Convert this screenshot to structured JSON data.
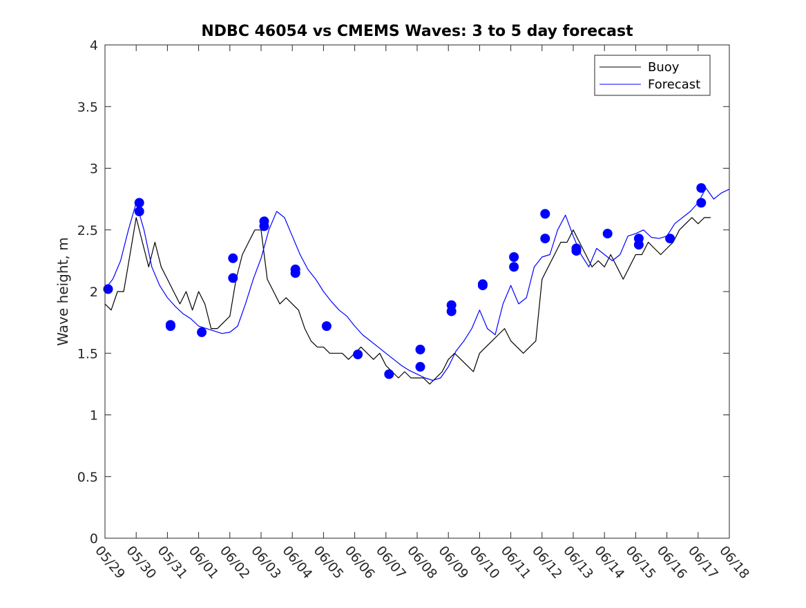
{
  "chart_data": {
    "type": "line",
    "title": "NDBC 46054 vs CMEMS Waves: 3 to 5 day forecast",
    "xlabel": "",
    "ylabel": "Wave height, m",
    "xlim": [
      0,
      20
    ],
    "ylim": [
      0,
      4
    ],
    "grid": false,
    "legend_position": "top-right",
    "x_tick_labels": [
      "05/29",
      "05/30",
      "05/31",
      "06/01",
      "06/02",
      "06/03",
      "06/04",
      "06/05",
      "06/06",
      "06/07",
      "06/08",
      "06/09",
      "06/10",
      "06/11",
      "06/12",
      "06/13",
      "06/14",
      "06/15",
      "06/16",
      "06/17",
      "06/18"
    ],
    "y_tick_labels": [
      "0",
      "0.5",
      "1",
      "1.5",
      "2",
      "2.5",
      "3",
      "3.5",
      "4"
    ],
    "legend": [
      {
        "label": "Buoy",
        "color": "#000000"
      },
      {
        "label": "Forecast",
        "color": "#0000ff"
      }
    ],
    "colors": {
      "buoy": "#000000",
      "forecast": "#0000ff",
      "markers": "#0000ff"
    },
    "series": [
      {
        "name": "Buoy",
        "x": [
          0,
          0.2,
          0.4,
          0.6,
          0.8,
          1.0,
          1.2,
          1.4,
          1.6,
          1.8,
          2.0,
          2.2,
          2.4,
          2.6,
          2.8,
          3.0,
          3.2,
          3.4,
          3.6,
          3.8,
          4.0,
          4.2,
          4.4,
          4.6,
          4.8,
          5.0,
          5.2,
          5.4,
          5.6,
          5.8,
          6.0,
          6.2,
          6.4,
          6.6,
          6.8,
          7.0,
          7.2,
          7.4,
          7.6,
          7.8,
          8.0,
          8.2,
          8.4,
          8.6,
          8.8,
          9.0,
          9.2,
          9.4,
          9.6,
          9.8,
          10.0,
          10.2,
          10.4,
          10.6,
          10.8,
          11.0,
          11.2,
          11.4,
          11.6,
          11.8,
          12.0,
          12.2,
          12.4,
          12.6,
          12.8,
          13.0,
          13.2,
          13.4,
          13.6,
          13.8,
          14.0,
          14.2,
          14.4,
          14.6,
          14.8,
          15.0,
          15.2,
          15.4,
          15.6,
          15.8,
          16.0,
          16.2,
          16.4,
          16.6,
          16.8,
          17.0,
          17.2,
          17.4,
          17.6,
          17.8,
          18.0,
          18.2,
          18.4,
          18.6,
          18.8,
          19.0,
          19.2,
          19.4
        ],
        "y": [
          1.9,
          1.85,
          2.0,
          2.0,
          2.3,
          2.6,
          2.4,
          2.2,
          2.4,
          2.2,
          2.1,
          2.0,
          1.9,
          2.0,
          1.85,
          2.0,
          1.9,
          1.7,
          1.7,
          1.75,
          1.8,
          2.1,
          2.3,
          2.4,
          2.5,
          2.5,
          2.1,
          2.0,
          1.9,
          1.95,
          1.9,
          1.85,
          1.7,
          1.6,
          1.55,
          1.55,
          1.5,
          1.5,
          1.5,
          1.45,
          1.5,
          1.55,
          1.5,
          1.45,
          1.5,
          1.4,
          1.35,
          1.3,
          1.35,
          1.3,
          1.3,
          1.3,
          1.25,
          1.3,
          1.35,
          1.45,
          1.5,
          1.45,
          1.4,
          1.35,
          1.5,
          1.55,
          1.6,
          1.65,
          1.7,
          1.6,
          1.55,
          1.5,
          1.55,
          1.6,
          2.1,
          2.2,
          2.3,
          2.4,
          2.4,
          2.5,
          2.4,
          2.3,
          2.2,
          2.25,
          2.2,
          2.3,
          2.2,
          2.1,
          2.2,
          2.3,
          2.3,
          2.4,
          2.35,
          2.3,
          2.35,
          2.4,
          2.5,
          2.55,
          2.6,
          2.55,
          2.6,
          2.6
        ]
      },
      {
        "name": "Forecast",
        "x": [
          0,
          0.25,
          0.5,
          0.75,
          1.0,
          1.25,
          1.5,
          1.75,
          2.0,
          2.25,
          2.5,
          2.75,
          3.0,
          3.25,
          3.5,
          3.75,
          4.0,
          4.25,
          4.5,
          4.75,
          5.0,
          5.25,
          5.5,
          5.75,
          6.0,
          6.25,
          6.5,
          6.75,
          7.0,
          7.25,
          7.5,
          7.75,
          8.0,
          8.25,
          8.5,
          8.75,
          9.0,
          9.25,
          9.5,
          9.75,
          10.0,
          10.25,
          10.5,
          10.75,
          11.0,
          11.25,
          11.5,
          11.75,
          12.0,
          12.25,
          12.5,
          12.75,
          13.0,
          13.25,
          13.5,
          13.75,
          14.0,
          14.25,
          14.5,
          14.75,
          15.0,
          15.25,
          15.5,
          15.75,
          16.0,
          16.25,
          16.5,
          16.75,
          17.0,
          17.25,
          17.5,
          17.75,
          18.0,
          18.25,
          18.5,
          18.75,
          19.0,
          19.25,
          19.5,
          19.75,
          20.0
        ],
        "y": [
          2.02,
          2.1,
          2.25,
          2.5,
          2.72,
          2.5,
          2.2,
          2.05,
          1.95,
          1.88,
          1.82,
          1.78,
          1.72,
          1.7,
          1.68,
          1.66,
          1.67,
          1.72,
          1.9,
          2.1,
          2.27,
          2.5,
          2.65,
          2.6,
          2.45,
          2.3,
          2.18,
          2.1,
          2.0,
          1.92,
          1.85,
          1.8,
          1.72,
          1.65,
          1.6,
          1.55,
          1.5,
          1.45,
          1.4,
          1.36,
          1.33,
          1.3,
          1.28,
          1.3,
          1.39,
          1.52,
          1.6,
          1.7,
          1.85,
          1.7,
          1.65,
          1.9,
          2.05,
          1.9,
          1.95,
          2.2,
          2.28,
          2.3,
          2.5,
          2.62,
          2.45,
          2.3,
          2.2,
          2.35,
          2.3,
          2.25,
          2.3,
          2.45,
          2.47,
          2.5,
          2.44,
          2.43,
          2.45,
          2.55,
          2.6,
          2.65,
          2.72,
          2.84,
          2.75,
          2.8,
          2.83
        ]
      }
    ],
    "forecast_markers": {
      "x": [
        0.1,
        1.1,
        1.1,
        2.1,
        2.1,
        3.1,
        4.1,
        4.1,
        5.1,
        5.1,
        6.1,
        6.1,
        7.1,
        8.1,
        9.1,
        10.1,
        10.1,
        11.1,
        11.1,
        12.1,
        12.1,
        13.1,
        13.1,
        14.1,
        14.1,
        15.1,
        15.1,
        16.1,
        17.1,
        17.1,
        18.1,
        19.1,
        19.1
      ],
      "y": [
        2.02,
        2.72,
        2.65,
        1.73,
        1.72,
        1.67,
        2.27,
        2.11,
        2.57,
        2.53,
        2.18,
        2.15,
        1.72,
        1.49,
        1.33,
        1.39,
        1.53,
        1.89,
        1.84,
        2.06,
        2.05,
        2.28,
        2.2,
        2.63,
        2.43,
        2.35,
        2.33,
        2.47,
        2.38,
        2.43,
        2.43,
        2.84,
        2.72
      ]
    }
  }
}
